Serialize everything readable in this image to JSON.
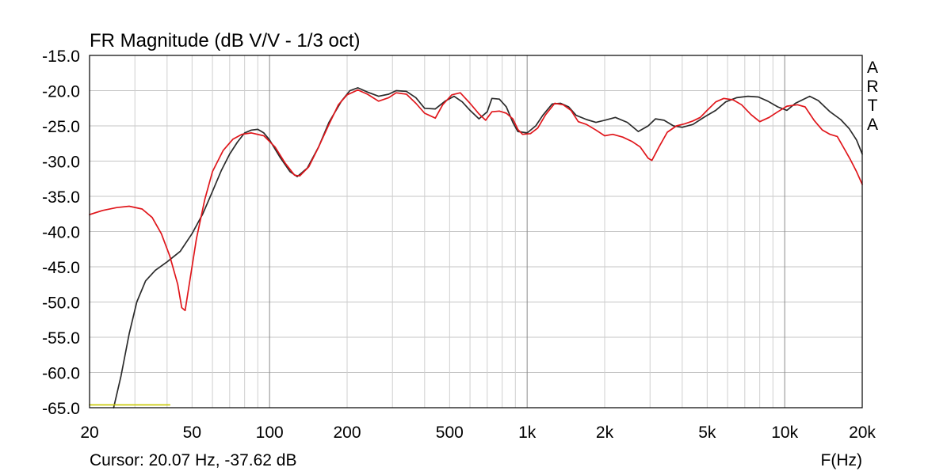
{
  "chart_data": {
    "type": "line",
    "title": "FR Magnitude (dB V/V - 1/3 oct)",
    "xlabel": "F(Hz)",
    "ylabel": "",
    "x_scale": "log",
    "xlim": [
      20,
      20000
    ],
    "ylim": [
      -65,
      -15
    ],
    "grid": true,
    "x_ticks": [
      {
        "value": 20,
        "label": "20"
      },
      {
        "value": 50,
        "label": "50"
      },
      {
        "value": 100,
        "label": "100"
      },
      {
        "value": 200,
        "label": "200"
      },
      {
        "value": 500,
        "label": "500"
      },
      {
        "value": 1000,
        "label": "1k"
      },
      {
        "value": 2000,
        "label": "2k"
      },
      {
        "value": 5000,
        "label": "5k"
      },
      {
        "value": 10000,
        "label": "10k"
      },
      {
        "value": 20000,
        "label": "20k"
      }
    ],
    "y_ticks": [
      {
        "value": -15,
        "label": "-15.0"
      },
      {
        "value": -20,
        "label": "-20.0"
      },
      {
        "value": -25,
        "label": "-25.0"
      },
      {
        "value": -30,
        "label": "-30.0"
      },
      {
        "value": -35,
        "label": "-35.0"
      },
      {
        "value": -40,
        "label": "-40.0"
      },
      {
        "value": -45,
        "label": "-45.0"
      },
      {
        "value": -50,
        "label": "-50.0"
      },
      {
        "value": -55,
        "label": "-55.0"
      },
      {
        "value": -60,
        "label": "-60.0"
      },
      {
        "value": -65,
        "label": "-65.0"
      }
    ],
    "series": [
      {
        "color": "#2b2b2b",
        "points": [
          [
            24.8,
            -65.0
          ],
          [
            26.5,
            -60.5
          ],
          [
            28.5,
            -54.5
          ],
          [
            30.5,
            -50.0
          ],
          [
            33,
            -47.0
          ],
          [
            36,
            -45.5
          ],
          [
            40,
            -44.3
          ],
          [
            45,
            -42.8
          ],
          [
            50,
            -40.3
          ],
          [
            55,
            -37.5
          ],
          [
            60,
            -34.3
          ],
          [
            65,
            -31.3
          ],
          [
            70,
            -29.0
          ],
          [
            75,
            -27.3
          ],
          [
            80,
            -26.0
          ],
          [
            85,
            -25.6
          ],
          [
            90,
            -25.5
          ],
          [
            95,
            -26.0
          ],
          [
            100,
            -27.0
          ],
          [
            110,
            -29.5
          ],
          [
            120,
            -31.5
          ],
          [
            128,
            -32.2
          ],
          [
            140,
            -31.0
          ],
          [
            155,
            -28.0
          ],
          [
            170,
            -24.5
          ],
          [
            190,
            -21.5
          ],
          [
            205,
            -20.0
          ],
          [
            220,
            -19.6
          ],
          [
            240,
            -20.2
          ],
          [
            265,
            -20.8
          ],
          [
            290,
            -20.5
          ],
          [
            310,
            -20.0
          ],
          [
            340,
            -20.1
          ],
          [
            370,
            -21.0
          ],
          [
            400,
            -22.5
          ],
          [
            440,
            -22.6
          ],
          [
            480,
            -21.5
          ],
          [
            520,
            -20.8
          ],
          [
            560,
            -21.6
          ],
          [
            600,
            -22.8
          ],
          [
            650,
            -24.0
          ],
          [
            700,
            -23.0
          ],
          [
            730,
            -21.1
          ],
          [
            780,
            -21.2
          ],
          [
            830,
            -22.3
          ],
          [
            880,
            -24.5
          ],
          [
            920,
            -25.8
          ],
          [
            1000,
            -26.0
          ],
          [
            1080,
            -25.0
          ],
          [
            1150,
            -23.5
          ],
          [
            1250,
            -21.9
          ],
          [
            1350,
            -21.8
          ],
          [
            1450,
            -22.3
          ],
          [
            1550,
            -23.5
          ],
          [
            1700,
            -24.1
          ],
          [
            1850,
            -24.5
          ],
          [
            2000,
            -24.2
          ],
          [
            2200,
            -23.8
          ],
          [
            2450,
            -24.5
          ],
          [
            2700,
            -25.8
          ],
          [
            2950,
            -25.0
          ],
          [
            3150,
            -24.0
          ],
          [
            3400,
            -24.2
          ],
          [
            3700,
            -25.0
          ],
          [
            4000,
            -25.2
          ],
          [
            4400,
            -24.8
          ],
          [
            4900,
            -23.7
          ],
          [
            5400,
            -22.8
          ],
          [
            5900,
            -21.6
          ],
          [
            6500,
            -21.0
          ],
          [
            7200,
            -20.8
          ],
          [
            7900,
            -20.9
          ],
          [
            8600,
            -21.5
          ],
          [
            9400,
            -22.3
          ],
          [
            10200,
            -22.8
          ],
          [
            11000,
            -21.8
          ],
          [
            12500,
            -20.8
          ],
          [
            13500,
            -21.4
          ],
          [
            15000,
            -23.0
          ],
          [
            16500,
            -24.1
          ],
          [
            17800,
            -25.4
          ],
          [
            19000,
            -27.0
          ],
          [
            20000,
            -29.0
          ]
        ]
      },
      {
        "color": "#e0161b",
        "points": [
          [
            20,
            -37.6
          ],
          [
            22.5,
            -37.0
          ],
          [
            25.5,
            -36.6
          ],
          [
            28.5,
            -36.4
          ],
          [
            32,
            -36.8
          ],
          [
            35,
            -38.0
          ],
          [
            38,
            -40.3
          ],
          [
            41,
            -43.5
          ],
          [
            44,
            -47.5
          ],
          [
            45.6,
            -50.8
          ],
          [
            47,
            -51.2
          ],
          [
            49,
            -47.0
          ],
          [
            52,
            -41.0
          ],
          [
            56,
            -35.5
          ],
          [
            60,
            -31.5
          ],
          [
            66,
            -28.5
          ],
          [
            72,
            -26.9
          ],
          [
            78,
            -26.2
          ],
          [
            85,
            -26.0
          ],
          [
            95,
            -26.4
          ],
          [
            105,
            -28.0
          ],
          [
            115,
            -30.3
          ],
          [
            125,
            -32.0
          ],
          [
            131,
            -32.1
          ],
          [
            142,
            -30.8
          ],
          [
            155,
            -28.0
          ],
          [
            170,
            -24.8
          ],
          [
            185,
            -22.0
          ],
          [
            200,
            -20.6
          ],
          [
            220,
            -19.9
          ],
          [
            240,
            -20.5
          ],
          [
            265,
            -21.5
          ],
          [
            290,
            -21.0
          ],
          [
            310,
            -20.3
          ],
          [
            340,
            -20.5
          ],
          [
            370,
            -21.8
          ],
          [
            400,
            -23.2
          ],
          [
            440,
            -23.9
          ],
          [
            470,
            -22.0
          ],
          [
            510,
            -20.6
          ],
          [
            550,
            -20.3
          ],
          [
            600,
            -21.8
          ],
          [
            650,
            -23.3
          ],
          [
            690,
            -24.2
          ],
          [
            730,
            -23.0
          ],
          [
            780,
            -22.9
          ],
          [
            830,
            -23.2
          ],
          [
            880,
            -24.0
          ],
          [
            920,
            -25.5
          ],
          [
            960,
            -26.2
          ],
          [
            1030,
            -26.1
          ],
          [
            1100,
            -25.3
          ],
          [
            1180,
            -23.4
          ],
          [
            1280,
            -21.8
          ],
          [
            1380,
            -22.0
          ],
          [
            1480,
            -22.8
          ],
          [
            1580,
            -24.4
          ],
          [
            1700,
            -24.8
          ],
          [
            1850,
            -25.6
          ],
          [
            2000,
            -26.4
          ],
          [
            2150,
            -26.2
          ],
          [
            2350,
            -26.6
          ],
          [
            2550,
            -27.2
          ],
          [
            2750,
            -28.0
          ],
          [
            2950,
            -29.6
          ],
          [
            3050,
            -29.9
          ],
          [
            3250,
            -28.0
          ],
          [
            3500,
            -25.9
          ],
          [
            3800,
            -25.0
          ],
          [
            4100,
            -24.7
          ],
          [
            4400,
            -24.3
          ],
          [
            4700,
            -23.8
          ],
          [
            5000,
            -22.8
          ],
          [
            5400,
            -21.6
          ],
          [
            5800,
            -21.1
          ],
          [
            6300,
            -21.3
          ],
          [
            6800,
            -22.0
          ],
          [
            7400,
            -23.4
          ],
          [
            8000,
            -24.4
          ],
          [
            8700,
            -23.8
          ],
          [
            9400,
            -23.0
          ],
          [
            10200,
            -22.2
          ],
          [
            11200,
            -22.0
          ],
          [
            12000,
            -22.3
          ],
          [
            13000,
            -24.2
          ],
          [
            14000,
            -25.6
          ],
          [
            15000,
            -26.2
          ],
          [
            16000,
            -26.5
          ],
          [
            17000,
            -28.2
          ],
          [
            18000,
            -29.8
          ],
          [
            19000,
            -31.5
          ],
          [
            20000,
            -33.3
          ]
        ]
      },
      {
        "color": "#c8c800",
        "points": [
          [
            20,
            -64.6
          ],
          [
            41,
            -64.6
          ]
        ]
      }
    ],
    "side_label": [
      "A",
      "R",
      "T",
      "A"
    ]
  },
  "cursor_readout": "Cursor: 20.07 Hz, -37.62 dB"
}
